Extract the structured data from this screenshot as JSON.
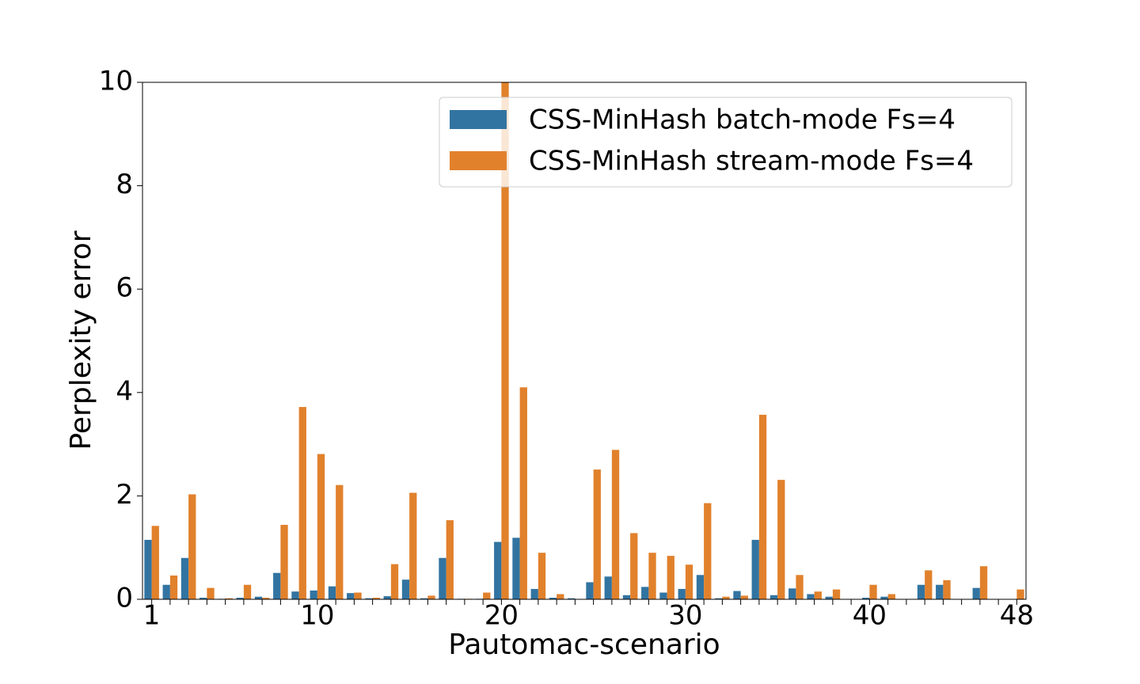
{
  "chart_data": {
    "type": "bar",
    "x_label": "Pautomac-scenario",
    "y_label": "Perplexity error",
    "categories": [
      "1",
      null,
      null,
      null,
      null,
      null,
      null,
      null,
      null,
      "10",
      null,
      null,
      null,
      null,
      null,
      null,
      null,
      null,
      null,
      "20",
      null,
      null,
      null,
      null,
      null,
      null,
      null,
      null,
      null,
      "30",
      null,
      null,
      null,
      null,
      null,
      null,
      null,
      null,
      null,
      "40",
      null,
      null,
      null,
      null,
      null,
      null,
      null,
      "48"
    ],
    "series": [
      {
        "name": "CSS-MinHash batch-mode Fs=4",
        "color": "#3274a1",
        "values": [
          1.15,
          0.28,
          0.8,
          0.03,
          0.01,
          0.03,
          0.05,
          0.51,
          0.15,
          0.17,
          0.25,
          0.12,
          0.02,
          0.06,
          0.38,
          0.02,
          0.8,
          0.01,
          0.01,
          1.11,
          1.19,
          0.2,
          0.03,
          0.02,
          0.33,
          0.44,
          0.08,
          0.24,
          0.13,
          0.2,
          0.47,
          0.02,
          0.16,
          1.15,
          0.08,
          0.21,
          0.1,
          0.05,
          0,
          0.03,
          0.05,
          0,
          0.28,
          0.28,
          0,
          0.22,
          0,
          0
        ]
      },
      {
        "name": "CSS-MinHash stream-mode Fs=4",
        "color": "#e1812c",
        "values": [
          1.42,
          0.46,
          2.03,
          0.22,
          0.02,
          0.28,
          0.03,
          1.44,
          3.72,
          2.81,
          2.21,
          0.13,
          0.03,
          0.68,
          2.06,
          0.07,
          1.53,
          0.01,
          0.13,
          10.5,
          4.1,
          0.9,
          0.1,
          0,
          2.51,
          2.89,
          1.28,
          0.9,
          0.84,
          0.67,
          1.86,
          0.05,
          0.07,
          3.57,
          2.31,
          0.47,
          0.15,
          0.19,
          0,
          0.28,
          0.1,
          0,
          0.56,
          0.37,
          0,
          0.64,
          0,
          0.19
        ]
      }
    ],
    "ylim": [
      0,
      10
    ],
    "yticks": [
      0,
      2,
      4,
      6,
      8,
      10
    ],
    "grid": false,
    "legend": "upper right"
  }
}
